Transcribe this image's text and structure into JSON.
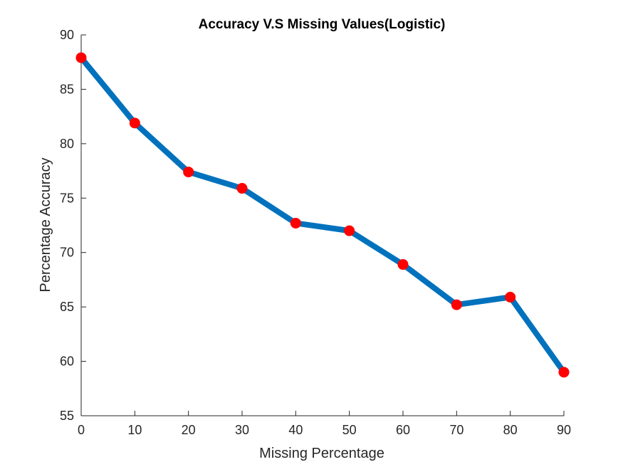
{
  "chart_data": {
    "type": "line",
    "title": "Accuracy V.S Missing Values(Logistic)",
    "xlabel": "Missing Percentage",
    "ylabel": "Percentage Accuracy",
    "x": [
      0,
      10,
      20,
      30,
      40,
      50,
      60,
      70,
      80,
      90
    ],
    "series": [
      {
        "values": [
          87.9,
          81.9,
          77.4,
          75.9,
          72.7,
          72.0,
          68.9,
          65.2,
          65.9,
          59.0
        ]
      }
    ],
    "xlim": [
      0,
      90
    ],
    "ylim": [
      55,
      90
    ],
    "xticks": [
      "0",
      "10",
      "20",
      "30",
      "40",
      "50",
      "60",
      "70",
      "80",
      "90"
    ],
    "yticks": [
      "55",
      "60",
      "65",
      "70",
      "75",
      "80",
      "85",
      "90"
    ],
    "grid": false,
    "colors": {
      "line": "#0072BD",
      "marker": "#FF0000",
      "axis": "#262626"
    }
  }
}
